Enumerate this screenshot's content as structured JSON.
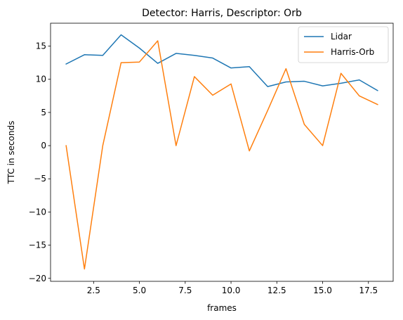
{
  "chart_data": {
    "type": "line",
    "title": "Detector: Harris, Descriptor: Orb",
    "xlabel": "frames",
    "ylabel": "TTC in seconds",
    "xlim": [
      0.15,
      18.85
    ],
    "ylim": [
      -20.45,
      18.45
    ],
    "xticks": [
      2.5,
      5.0,
      7.5,
      10.0,
      12.5,
      15.0,
      17.5
    ],
    "xtick_labels": [
      "2.5",
      "5.0",
      "7.5",
      "10.0",
      "12.5",
      "15.0",
      "17.5"
    ],
    "yticks": [
      -20,
      -15,
      -10,
      -5,
      0,
      5,
      10,
      15
    ],
    "ytick_labels": [
      "−20",
      "−15",
      "−10",
      "−5",
      "0",
      "5",
      "10",
      "15"
    ],
    "grid": false,
    "legend_position": "top-right",
    "x": [
      1,
      2,
      3,
      4,
      5,
      6,
      7,
      8,
      9,
      10,
      11,
      12,
      13,
      14,
      15,
      16,
      17,
      18
    ],
    "series": [
      {
        "name": "Lidar",
        "color": "#1f77b4",
        "values": [
          12.3,
          13.7,
          13.6,
          16.7,
          14.7,
          12.4,
          13.9,
          13.6,
          13.2,
          11.7,
          11.9,
          8.9,
          9.6,
          9.7,
          9.0,
          9.4,
          9.9,
          8.3
        ]
      },
      {
        "name": "Harris-Orb",
        "color": "#ff7f0e",
        "values": [
          0.0,
          -18.6,
          0.0,
          12.5,
          12.6,
          15.8,
          0.0,
          10.4,
          7.6,
          9.3,
          -0.8,
          5.3,
          11.6,
          3.2,
          0.0,
          10.9,
          7.5,
          6.2
        ]
      }
    ]
  }
}
